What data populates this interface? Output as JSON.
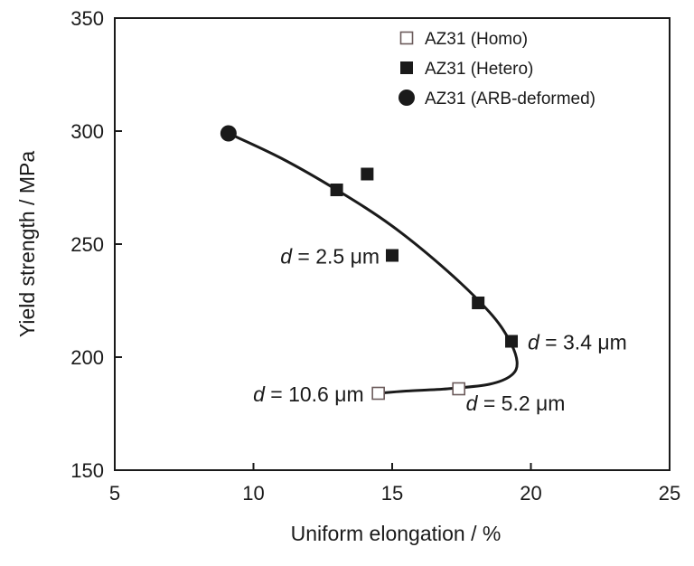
{
  "chart_data": {
    "type": "scatter",
    "xlabel": "Uniform elongation / %",
    "ylabel": "Yield strength / MPa",
    "xlim": [
      5,
      25
    ],
    "ylim": [
      150,
      350
    ],
    "xticks": [
      5,
      10,
      15,
      20,
      25
    ],
    "yticks": [
      150,
      200,
      250,
      300,
      350
    ],
    "grid": false,
    "legend_position": "top-right",
    "series": [
      {
        "name": "AZ31 (Homo)",
        "marker": "open-square",
        "color": "#6b5a5a",
        "points": [
          [
            14.5,
            184
          ],
          [
            17.4,
            186
          ]
        ]
      },
      {
        "name": "AZ31 (Hetero)",
        "marker": "filled-square",
        "color": "#1a1a1a",
        "points": [
          [
            13.0,
            274
          ],
          [
            14.1,
            281
          ],
          [
            15.0,
            245
          ],
          [
            18.1,
            224
          ],
          [
            19.3,
            207
          ]
        ]
      },
      {
        "name": "AZ31 (ARB-deformed)",
        "marker": "filled-circle",
        "color": "#1a1a1a",
        "points": [
          [
            9.1,
            299
          ]
        ]
      }
    ],
    "trend_curve": [
      [
        9.1,
        299
      ],
      [
        11,
        288
      ],
      [
        13,
        274
      ],
      [
        15,
        258
      ],
      [
        17,
        238
      ],
      [
        18.5,
        220
      ],
      [
        19.2,
        208
      ],
      [
        19.5,
        198
      ],
      [
        19.3,
        192
      ],
      [
        18.5,
        188
      ],
      [
        17,
        186
      ],
      [
        15.5,
        185
      ],
      [
        14.5,
        184
      ]
    ],
    "annotations": [
      {
        "italic": "d",
        "rest": " = 2.5 μm",
        "x": 15.0,
        "y": 245
      },
      {
        "italic": "d",
        "rest": " = 3.4 μm",
        "x": 19.3,
        "y": 207
      },
      {
        "italic": "d",
        "rest": " = 10.6 μm",
        "x": 14.5,
        "y": 184
      },
      {
        "italic": "d",
        "rest": " = 5.2 μm",
        "x": 17.4,
        "y": 186
      }
    ]
  }
}
